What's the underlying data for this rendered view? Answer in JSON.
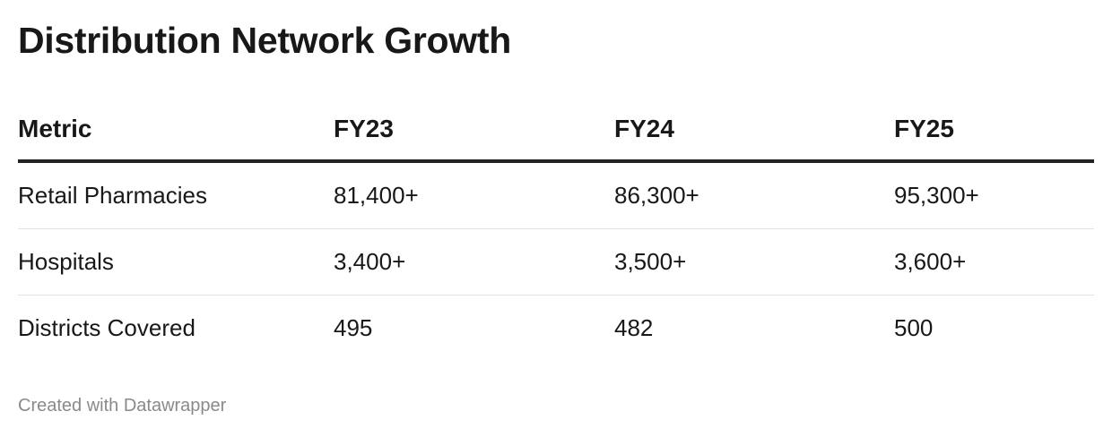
{
  "chart_data": {
    "type": "table",
    "title": "Distribution Network Growth",
    "columns": [
      "Metric",
      "FY23",
      "FY24",
      "FY25"
    ],
    "rows": [
      [
        "Retail Pharmacies",
        "81,400+",
        "86,300+",
        "95,300+"
      ],
      [
        "Hospitals",
        "3,400+",
        "3,500+",
        "3,600+"
      ],
      [
        "Districts Covered",
        "495",
        "482",
        "500"
      ]
    ]
  },
  "footer": {
    "credit": "Created with Datawrapper"
  }
}
